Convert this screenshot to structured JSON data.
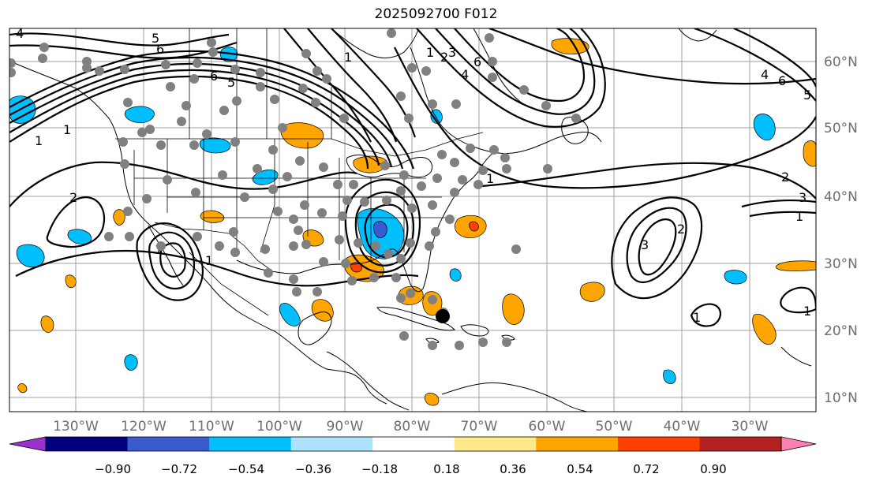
{
  "title": "2025092700 F012",
  "longitude_ticks": [
    "130°W",
    "120°W",
    "110°W",
    "100°W",
    "90°W",
    "80°W",
    "70°W",
    "60°W",
    "50°W",
    "40°W",
    "30°W"
  ],
  "latitude_ticks": [
    "60°N",
    "50°N",
    "40°N",
    "30°N",
    "20°N",
    "10°N"
  ],
  "colorbar": {
    "tick_labels": [
      "−0.90",
      "−0.72",
      "−0.54",
      "−0.36",
      "−0.18",
      "0.18",
      "0.36",
      "0.54",
      "0.72",
      "0.90"
    ],
    "colors": [
      "#9932cc",
      "#000080",
      "#3a5bd0",
      "#00bfff",
      "#aee3ff",
      "#ffffff",
      "#ffe98a",
      "#ffa500",
      "#ff4000",
      "#b22222",
      "#ff80b0"
    ]
  },
  "contour_labels": [
    "5",
    "6",
    "6",
    "5",
    "4",
    "1",
    "1",
    "1",
    "1",
    "2",
    "1",
    "1",
    "3",
    "2",
    "2",
    "1",
    "3",
    "4",
    "6",
    "5",
    "4",
    "6",
    "1",
    "2",
    "3",
    "1",
    "1"
  ],
  "marker_colors": {
    "stations": "#808080",
    "center": "#000000"
  },
  "grid_color": "#a0a0a0"
}
